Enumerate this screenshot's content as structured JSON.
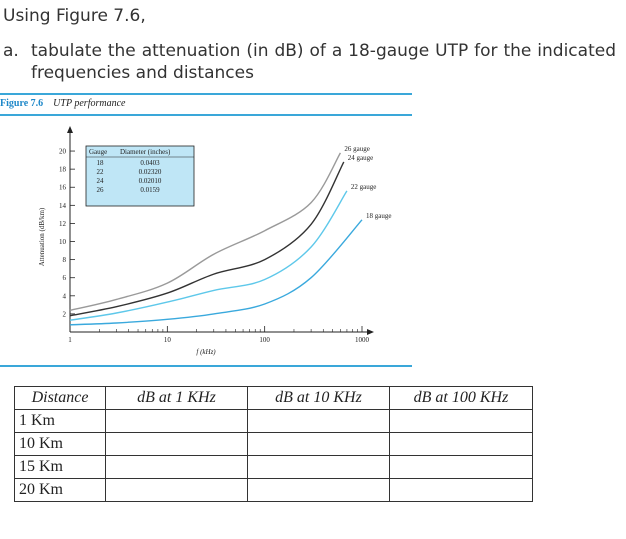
{
  "question": {
    "title": "Using Figure 7.6,",
    "part_label": "a.",
    "part_text": "tabulate the attenuation (in dB) of a 18-gauge UTP for the indicated frequencies and distances"
  },
  "figure": {
    "number": "Figure 7.6",
    "caption": "UTP performance"
  },
  "chart_data": {
    "type": "line",
    "xlabel": "f (kHz)",
    "ylabel": "Attenuation (dB/km)",
    "x_scale": "log",
    "xlim": [
      1,
      1000
    ],
    "ylim": [
      0,
      21
    ],
    "x_ticks": [
      "1",
      "10",
      "100",
      "1000"
    ],
    "y_ticks": [
      "2",
      "4",
      "6",
      "8",
      "10",
      "12",
      "14",
      "16",
      "18",
      "20"
    ],
    "colors": {
      "26": "#9a9a9a",
      "24": "#333333",
      "22": "#5ec8ea",
      "18": "#3aa9dd"
    },
    "series": [
      {
        "name": "26 gauge",
        "x": [
          1,
          3,
          10,
          30,
          100,
          300,
          600
        ],
        "y": [
          2.4,
          3.6,
          5.4,
          8.6,
          11.2,
          14.3,
          19.8
        ]
      },
      {
        "name": "24 gauge",
        "x": [
          1,
          3,
          10,
          30,
          100,
          300,
          650
        ],
        "y": [
          1.8,
          2.8,
          4.3,
          6.4,
          8.0,
          11.9,
          18.8
        ]
      },
      {
        "name": "22 gauge",
        "x": [
          1,
          3,
          10,
          30,
          100,
          300,
          700
        ],
        "y": [
          1.3,
          2.1,
          3.3,
          4.6,
          5.8,
          9.4,
          15.6
        ]
      },
      {
        "name": "18 gauge",
        "x": [
          1,
          3,
          10,
          30,
          100,
          300,
          1000
        ],
        "y": [
          0.8,
          1.0,
          1.4,
          2.0,
          3.1,
          6.0,
          12.4
        ]
      }
    ],
    "legend_table": {
      "headers": [
        "Gauge",
        "Diameter (inches)"
      ],
      "rows": [
        [
          "18",
          "0.0403"
        ],
        [
          "22",
          "0.02320"
        ],
        [
          "24",
          "0.02010"
        ],
        [
          "26",
          "0.0159"
        ]
      ]
    }
  },
  "table": {
    "headers": [
      "Distance",
      "dB at 1 KHz",
      "dB at 10 KHz",
      "dB at 100 KHz"
    ],
    "rows": [
      [
        "1 Km",
        "",
        "",
        ""
      ],
      [
        "10 Km",
        "",
        "",
        ""
      ],
      [
        "15 Km",
        "",
        "",
        ""
      ],
      [
        "20 Km",
        "",
        "",
        ""
      ]
    ]
  }
}
